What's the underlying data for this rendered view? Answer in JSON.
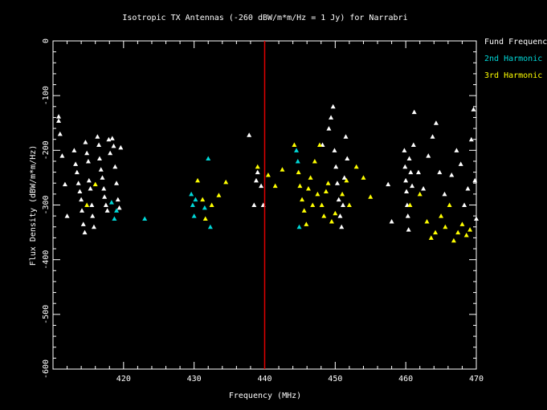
{
  "chart_data": {
    "type": "scatter",
    "title": "Isotropic TX Antennas (-260 dBW/m*m/Hz = 1 Jy) for Narrabri",
    "xlabel": "Frequency (MHz)",
    "ylabel": "Flux Density (dBW/m*m/Hz)",
    "xlim": [
      410,
      470
    ],
    "ylim": [
      -600,
      0
    ],
    "x_ticks": [
      420,
      430,
      440,
      450,
      460,
      470
    ],
    "x_tick_labels": [
      "420",
      "430",
      "440",
      "450",
      "460",
      "470"
    ],
    "y_ticks": [
      0,
      -100,
      -200,
      -300,
      -400,
      -500,
      -600
    ],
    "y_tick_labels": [
      "0",
      "-100",
      "-200",
      "-300",
      "-400",
      "-500",
      "-600"
    ],
    "marker_line": {
      "x": 440,
      "color": "#e00000"
    },
    "legend_position": "right-outside-top",
    "series": [
      {
        "name": "Fund Frequency",
        "color": "#ffffff",
        "points": [
          [
            410.8,
            -138
          ],
          [
            410.8,
            -146
          ],
          [
            411.0,
            -170
          ],
          [
            411.3,
            -210
          ],
          [
            411.7,
            -262
          ],
          [
            412.0,
            -320
          ],
          [
            413.0,
            -200
          ],
          [
            413.2,
            -225
          ],
          [
            413.4,
            -240
          ],
          [
            413.6,
            -260
          ],
          [
            413.8,
            -275
          ],
          [
            414.0,
            -290
          ],
          [
            414.1,
            -310
          ],
          [
            414.3,
            -335
          ],
          [
            414.5,
            -350
          ],
          [
            414.6,
            -185
          ],
          [
            414.8,
            -205
          ],
          [
            415.0,
            -220
          ],
          [
            415.1,
            -255
          ],
          [
            415.3,
            -270
          ],
          [
            415.5,
            -300
          ],
          [
            415.6,
            -320
          ],
          [
            415.8,
            -340
          ],
          [
            416.3,
            -175
          ],
          [
            416.5,
            -190
          ],
          [
            416.6,
            -215
          ],
          [
            416.8,
            -235
          ],
          [
            417.0,
            -250
          ],
          [
            417.2,
            -270
          ],
          [
            417.3,
            -285
          ],
          [
            417.5,
            -300
          ],
          [
            417.7,
            -310
          ],
          [
            417.9,
            -180
          ],
          [
            418.1,
            -205
          ],
          [
            418.4,
            -178
          ],
          [
            418.6,
            -192
          ],
          [
            418.8,
            -230
          ],
          [
            419.0,
            -260
          ],
          [
            419.2,
            -290
          ],
          [
            419.4,
            -305
          ],
          [
            419.6,
            -195
          ],
          [
            437.8,
            -172
          ],
          [
            438.5,
            -300
          ],
          [
            438.8,
            -255
          ],
          [
            439.0,
            -240
          ],
          [
            439.5,
            -265
          ],
          [
            439.8,
            -300
          ],
          [
            448.2,
            -190
          ],
          [
            449.1,
            -160
          ],
          [
            449.4,
            -140
          ],
          [
            449.7,
            -120
          ],
          [
            449.9,
            -200
          ],
          [
            450.1,
            -230
          ],
          [
            450.3,
            -260
          ],
          [
            450.5,
            -290
          ],
          [
            450.7,
            -320
          ],
          [
            450.9,
            -340
          ],
          [
            451.1,
            -300
          ],
          [
            451.3,
            -250
          ],
          [
            451.5,
            -175
          ],
          [
            451.7,
            -215
          ],
          [
            457.5,
            -262
          ],
          [
            458.0,
            -330
          ],
          [
            459.8,
            -200
          ],
          [
            459.9,
            -230
          ],
          [
            460.0,
            -255
          ],
          [
            460.1,
            -275
          ],
          [
            460.2,
            -300
          ],
          [
            460.3,
            -320
          ],
          [
            460.4,
            -345
          ],
          [
            460.5,
            -215
          ],
          [
            460.7,
            -240
          ],
          [
            460.9,
            -265
          ],
          [
            461.1,
            -190
          ],
          [
            461.2,
            -130
          ],
          [
            461.8,
            -240
          ],
          [
            462.5,
            -270
          ],
          [
            463.2,
            -210
          ],
          [
            463.8,
            -175
          ],
          [
            464.3,
            -150
          ],
          [
            464.8,
            -240
          ],
          [
            465.5,
            -280
          ],
          [
            466.5,
            -245
          ],
          [
            467.2,
            -200
          ],
          [
            467.8,
            -225
          ],
          [
            468.3,
            -300
          ],
          [
            468.8,
            -270
          ],
          [
            469.3,
            -180
          ],
          [
            469.6,
            -125
          ],
          [
            469.8,
            -255
          ],
          [
            470.0,
            -325
          ]
        ]
      },
      {
        "name": "2nd Harmonic",
        "color": "#00d8d8",
        "points": [
          [
            418.3,
            -295
          ],
          [
            418.7,
            -325
          ],
          [
            419.0,
            -310
          ],
          [
            423.0,
            -325
          ],
          [
            429.6,
            -280
          ],
          [
            429.8,
            -300
          ],
          [
            430.0,
            -320
          ],
          [
            430.2,
            -290
          ],
          [
            431.5,
            -305
          ],
          [
            432.0,
            -215
          ],
          [
            432.3,
            -340
          ],
          [
            444.5,
            -200
          ],
          [
            444.7,
            -220
          ],
          [
            444.9,
            -340
          ]
        ]
      },
      {
        "name": "3rd Harmonic",
        "color": "#ffff00",
        "points": [
          [
            414.8,
            -300
          ],
          [
            416.0,
            -262
          ],
          [
            430.5,
            -255
          ],
          [
            431.2,
            -290
          ],
          [
            431.6,
            -325
          ],
          [
            432.5,
            -300
          ],
          [
            433.5,
            -282
          ],
          [
            434.5,
            -258
          ],
          [
            439.0,
            -230
          ],
          [
            440.5,
            -245
          ],
          [
            441.5,
            -265
          ],
          [
            442.5,
            -235
          ],
          [
            444.2,
            -190
          ],
          [
            444.8,
            -240
          ],
          [
            445.0,
            -265
          ],
          [
            445.3,
            -290
          ],
          [
            445.6,
            -310
          ],
          [
            445.9,
            -335
          ],
          [
            446.2,
            -270
          ],
          [
            446.5,
            -250
          ],
          [
            446.8,
            -300
          ],
          [
            447.1,
            -220
          ],
          [
            447.5,
            -280
          ],
          [
            447.8,
            -190
          ],
          [
            448.1,
            -300
          ],
          [
            448.4,
            -320
          ],
          [
            448.7,
            -275
          ],
          [
            449.0,
            -260
          ],
          [
            449.5,
            -330
          ],
          [
            450.0,
            -315
          ],
          [
            451.0,
            -280
          ],
          [
            451.6,
            -255
          ],
          [
            452.0,
            -300
          ],
          [
            453.0,
            -230
          ],
          [
            454.0,
            -250
          ],
          [
            455.0,
            -285
          ],
          [
            460.6,
            -300
          ],
          [
            462.0,
            -280
          ],
          [
            463.0,
            -330
          ],
          [
            463.6,
            -360
          ],
          [
            464.2,
            -350
          ],
          [
            465.0,
            -320
          ],
          [
            465.6,
            -340
          ],
          [
            466.2,
            -300
          ],
          [
            466.8,
            -365
          ],
          [
            467.4,
            -350
          ],
          [
            468.0,
            -335
          ],
          [
            468.6,
            -355
          ],
          [
            469.1,
            -345
          ]
        ]
      }
    ]
  }
}
